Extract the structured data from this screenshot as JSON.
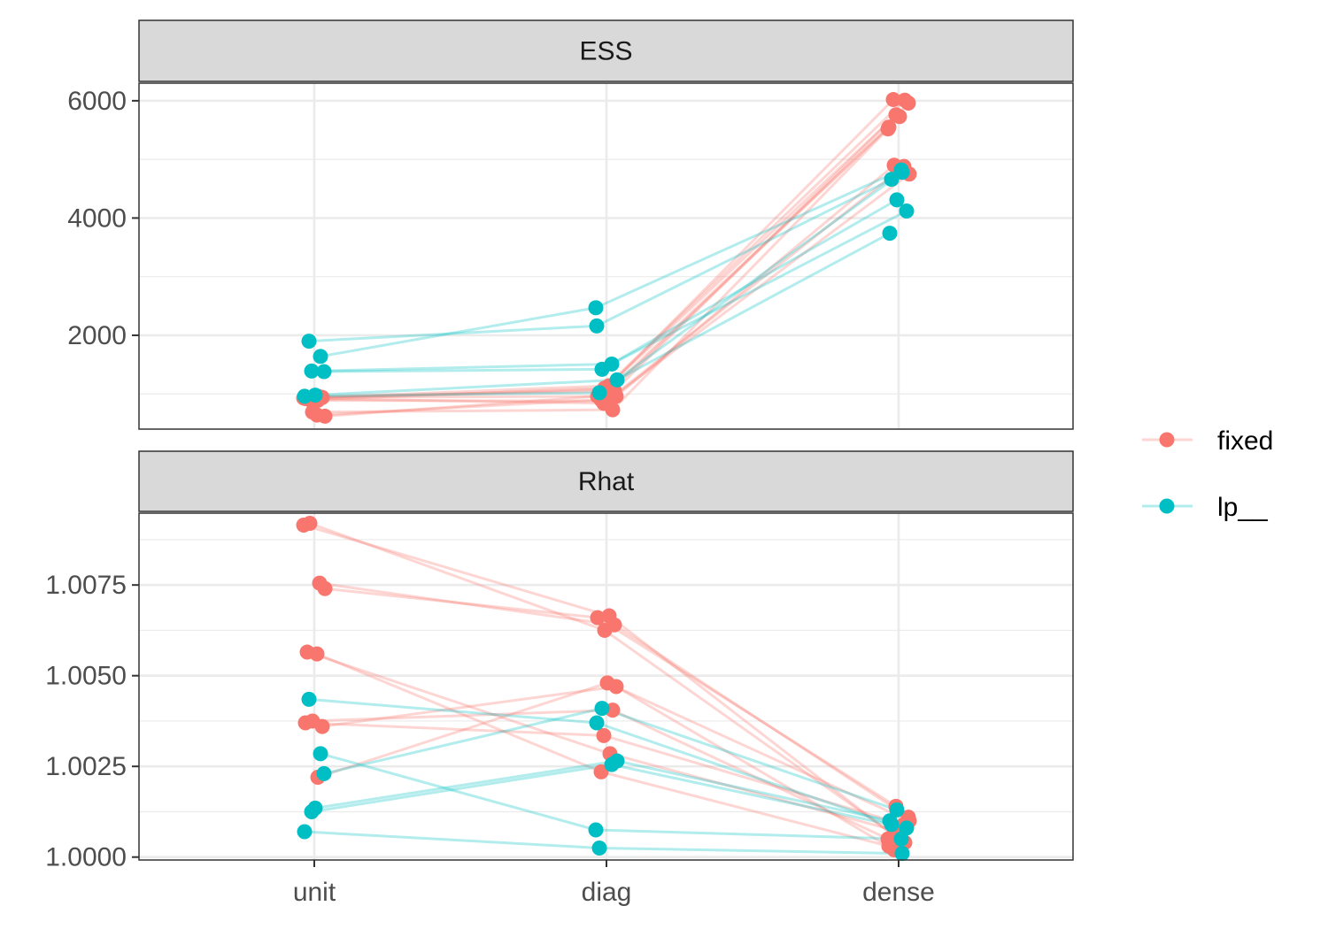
{
  "chart_data": {
    "type": "line",
    "x_categories": [
      "unit",
      "diag",
      "dense"
    ],
    "legend": {
      "placement": "right",
      "entries": [
        {
          "name": "fixed",
          "color": "#F8766D"
        },
        {
          "name": "lp__",
          "color": "#00BFC4"
        }
      ]
    },
    "facets": [
      {
        "label": "ESS",
        "ylim": [
          400,
          6300
        ],
        "y_ticks": [
          2000,
          4000,
          6000
        ],
        "y_tick_labels": [
          "2000",
          "4000",
          "6000"
        ],
        "y_minor_ticks": [
          1000,
          3000,
          5000
        ],
        "series": [
          {
            "group": "fixed",
            "values": [
              930,
              1140,
              6020
            ]
          },
          {
            "group": "fixed",
            "values": [
              900,
              1100,
              6010
            ]
          },
          {
            "group": "fixed",
            "values": [
              950,
              1050,
              5960
            ]
          },
          {
            "group": "fixed",
            "values": [
              620,
              960,
              5760
            ]
          },
          {
            "group": "fixed",
            "values": [
              930,
              1080,
              5730
            ]
          },
          {
            "group": "fixed",
            "values": [
              640,
              900,
              5550
            ]
          },
          {
            "group": "fixed",
            "values": [
              690,
              730,
              5520
            ]
          },
          {
            "group": "fixed",
            "values": [
              940,
              960,
              4900
            ]
          },
          {
            "group": "fixed",
            "values": [
              920,
              840,
              4880
            ]
          },
          {
            "group": "fixed",
            "values": [
              890,
              880,
              4750
            ]
          },
          {
            "group": "lp__",
            "values": [
              1900,
              2160,
              4660
            ]
          },
          {
            "group": "lp__",
            "values": [
              1640,
              2470,
              4820
            ]
          },
          {
            "group": "lp__",
            "values": [
              1380,
              1420,
              4310
            ]
          },
          {
            "group": "lp__",
            "values": [
              1390,
              1510,
              4120
            ]
          },
          {
            "group": "lp__",
            "values": [
              980,
              1240,
              3740
            ]
          },
          {
            "group": "lp__",
            "values": [
              960,
              1020,
              4780
            ]
          }
        ]
      },
      {
        "label": "Rhat",
        "ylim": [
          0.99992,
          1.00948
        ],
        "y_ticks": [
          1.0,
          1.0025,
          1.005,
          1.0075
        ],
        "y_tick_labels": [
          "1.0000",
          "1.0025",
          "1.0050",
          "1.0075"
        ],
        "y_minor_ticks": [
          1.00125,
          1.00375,
          1.00625,
          1.00875
        ],
        "series": [
          {
            "group": "fixed",
            "values": [
              1.00915,
              1.00665,
              1.0006
            ]
          },
          {
            "group": "fixed",
            "values": [
              1.0092,
              1.00625,
              1.0004
            ]
          },
          {
            "group": "fixed",
            "values": [
              1.00755,
              1.0064,
              1.0011
            ]
          },
          {
            "group": "fixed",
            "values": [
              1.0074,
              1.0066,
              1.0014
            ]
          },
          {
            "group": "fixed",
            "values": [
              1.00565,
              1.00285,
              1.0007
            ]
          },
          {
            "group": "fixed",
            "values": [
              1.0056,
              1.00235,
              1.0003
            ]
          },
          {
            "group": "fixed",
            "values": [
              1.00375,
              1.00405,
              1.0005
            ]
          },
          {
            "group": "fixed",
            "values": [
              1.0036,
              1.0047,
              1.0002
            ]
          },
          {
            "group": "fixed",
            "values": [
              1.0037,
              1.00335,
              1.0009
            ]
          },
          {
            "group": "fixed",
            "values": [
              1.0022,
              1.0048,
              1.001
            ]
          },
          {
            "group": "lp__",
            "values": [
              1.00435,
              1.0037,
              1.0009
            ]
          },
          {
            "group": "lp__",
            "values": [
              1.00285,
              1.00075,
              1.0005
            ]
          },
          {
            "group": "lp__",
            "values": [
              1.0023,
              1.0041,
              1.0013
            ]
          },
          {
            "group": "lp__",
            "values": [
              1.00125,
              1.00255,
              1.0008
            ]
          },
          {
            "group": "lp__",
            "values": [
              1.00135,
              1.00265,
              1.001
            ]
          },
          {
            "group": "lp__",
            "values": [
              1.0007,
              1.00025,
              1.0001
            ]
          }
        ]
      }
    ]
  }
}
